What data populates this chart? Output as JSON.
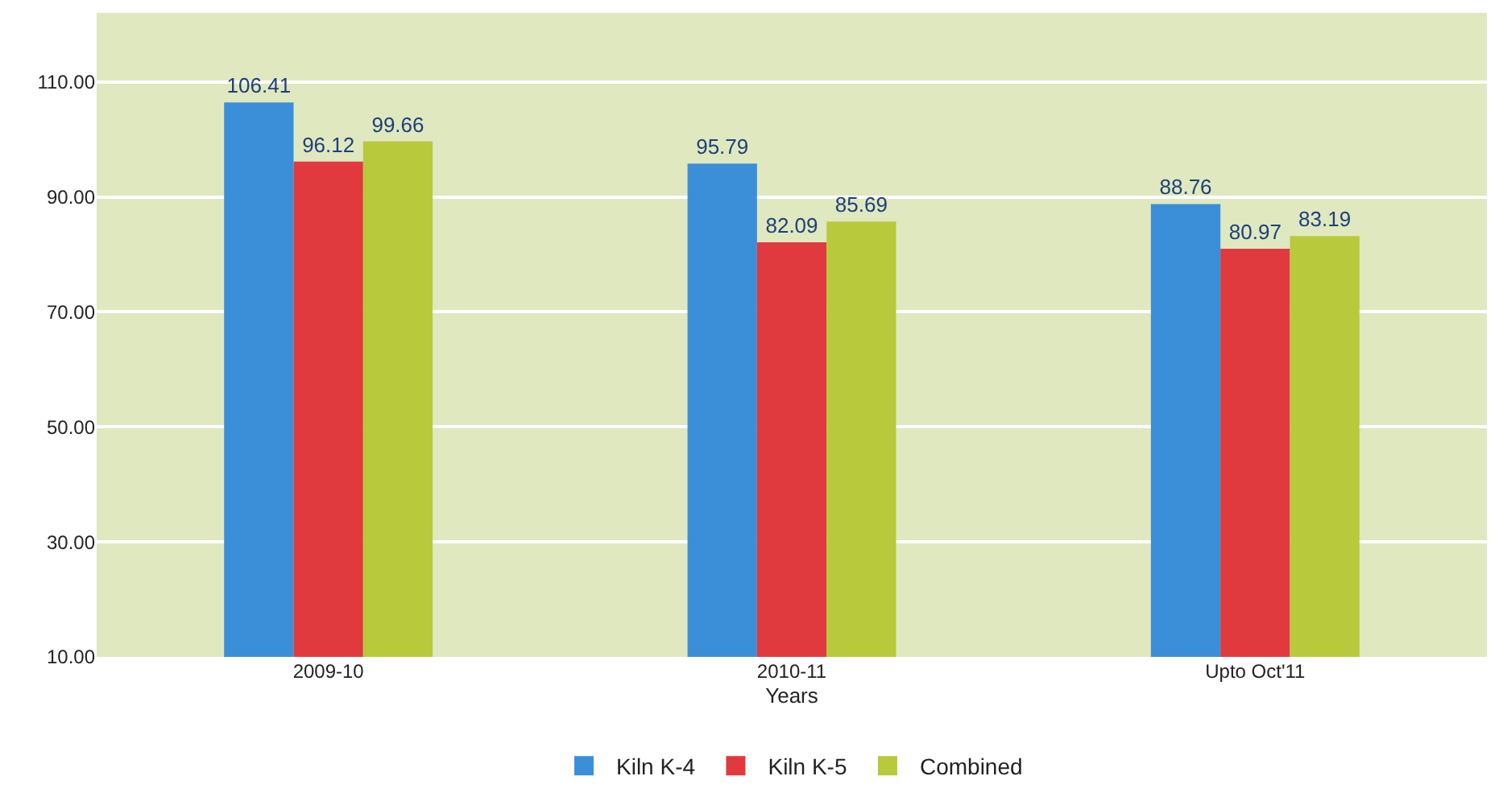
{
  "chart_data": {
    "type": "bar",
    "xlabel": "Years",
    "categories": [
      "2009-10",
      "2010-11",
      "Upto Oct'11"
    ],
    "series": [
      {
        "name": "Kiln K-4",
        "color": "#3b8fd9",
        "values": [
          106.41,
          95.79,
          88.76
        ]
      },
      {
        "name": "Kiln K-5",
        "color": "#e03a3e",
        "values": [
          96.12,
          82.09,
          80.97
        ]
      },
      {
        "name": "Combined",
        "color": "#b9c93c",
        "values": [
          99.66,
          85.69,
          83.19
        ]
      }
    ],
    "ylim": [
      10,
      122
    ],
    "yticks": [
      {
        "value": 10,
        "label": "10.00"
      },
      {
        "value": 30,
        "label": "30.00"
      },
      {
        "value": 50,
        "label": "50.00"
      },
      {
        "value": 70,
        "label": "70.00"
      },
      {
        "value": 90,
        "label": "90.00"
      },
      {
        "value": 110,
        "label": "110.00"
      }
    ],
    "grid": "y",
    "legend": "bottom",
    "data_labels": true
  }
}
